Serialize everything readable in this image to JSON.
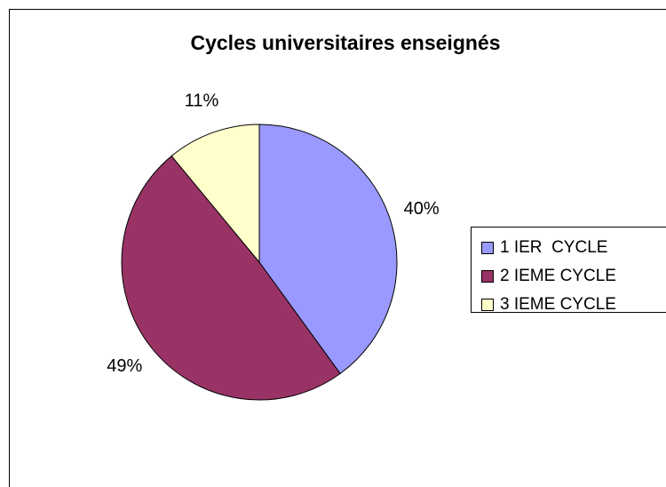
{
  "chart_data": {
    "type": "pie",
    "title": "Cycles universitaires enseignés",
    "categories": [
      "1 IER  CYCLE",
      "2 IEME CYCLE",
      "3 IEME CYCLE"
    ],
    "values": [
      40,
      49,
      11
    ],
    "value_labels": [
      "40%",
      "49%",
      "11%"
    ],
    "colors": [
      "#9999ff",
      "#993366",
      "#ffffcc"
    ],
    "legend": "right"
  }
}
